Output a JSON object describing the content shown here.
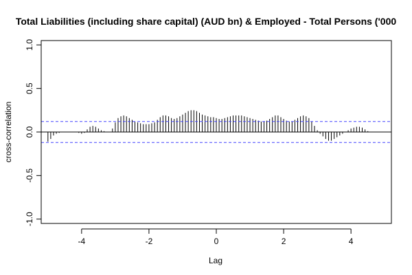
{
  "chart_data": {
    "type": "bar",
    "title": "Total Liabilities (including share capital) (AUD bn)  & Employed - Total Persons ('000",
    "xlabel": "Lag",
    "ylabel": "cross-correlation",
    "xlim": [
      -5.2,
      5.2
    ],
    "ylim": [
      -1.05,
      1.05
    ],
    "xticks": [
      -4,
      -2,
      0,
      2,
      4
    ],
    "xtick_labels": [
      "-4",
      "-2",
      "0",
      "2",
      "4"
    ],
    "yticks": [
      -1.0,
      -0.5,
      0.0,
      0.5,
      1.0
    ],
    "ytick_labels": [
      "-1.0",
      "-0.5",
      "0.0",
      "0.5",
      "1.0"
    ],
    "confidence_bound": 0.12,
    "confidence_color": "#4040ff",
    "lag_step": 0.0833333,
    "values": [
      -0.11,
      -0.08,
      -0.04,
      -0.02,
      -0.01,
      0,
      0,
      0,
      0,
      0,
      0,
      -0.01,
      -0.02,
      -0.01,
      0.03,
      0.06,
      0.07,
      0.06,
      0.04,
      0.02,
      0.01,
      0,
      0,
      0.04,
      0.11,
      0.16,
      0.18,
      0.19,
      0.18,
      0.16,
      0.14,
      0.12,
      0.11,
      0.1,
      0.09,
      0.09,
      0.09,
      0.1,
      0.11,
      0.14,
      0.17,
      0.19,
      0.19,
      0.18,
      0.16,
      0.15,
      0.16,
      0.18,
      0.2,
      0.22,
      0.24,
      0.25,
      0.25,
      0.24,
      0.22,
      0.2,
      0.19,
      0.18,
      0.17,
      0.17,
      0.16,
      0.15,
      0.15,
      0.16,
      0.17,
      0.18,
      0.19,
      0.19,
      0.19,
      0.19,
      0.18,
      0.17,
      0.16,
      0.15,
      0.14,
      0.13,
      0.12,
      0.12,
      0.13,
      0.15,
      0.17,
      0.19,
      0.19,
      0.17,
      0.15,
      0.13,
      0.12,
      0.12,
      0.14,
      0.16,
      0.18,
      0.19,
      0.18,
      0.16,
      0.12,
      0.07,
      0.02,
      -0.02,
      -0.05,
      -0.08,
      -0.1,
      -0.1,
      -0.08,
      -0.06,
      -0.04,
      -0.02,
      0,
      0.02,
      0.04,
      0.05,
      0.06,
      0.06,
      0.05,
      0.03,
      0.01,
      0,
      0,
      0,
      0,
      0,
      0
    ]
  }
}
